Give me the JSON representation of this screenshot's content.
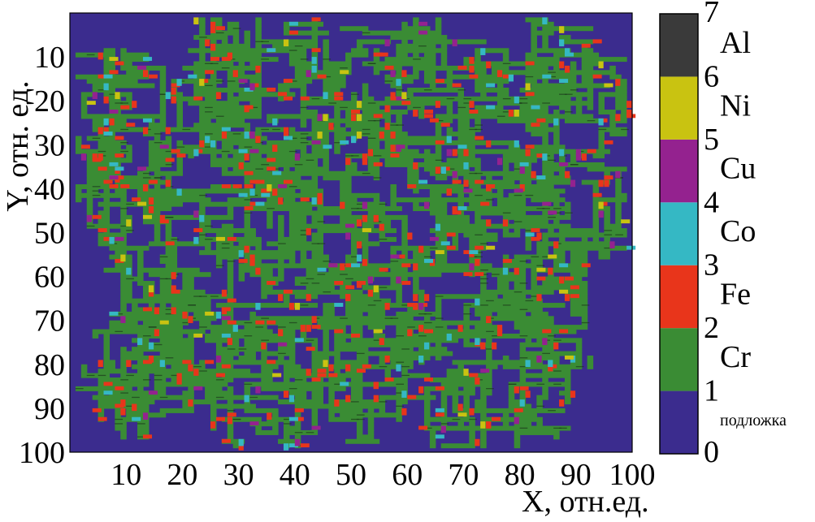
{
  "chart_data": {
    "type": "heatmap",
    "xlabel": "X, отн.ед.",
    "ylabel": "Y, отн. ед.",
    "xlim": [
      0,
      100
    ],
    "ylim": [
      0,
      100
    ],
    "y_inverted": true,
    "x_ticks": [
      10,
      20,
      30,
      40,
      50,
      60,
      70,
      80,
      90,
      100
    ],
    "y_ticks": [
      10,
      20,
      30,
      40,
      50,
      60,
      70,
      80,
      90,
      100
    ],
    "grid": false,
    "legend_position": "right",
    "colorbar": {
      "ticks": [
        0,
        1,
        2,
        3,
        4,
        5,
        6,
        7
      ],
      "segments": [
        {
          "from": 0,
          "to": 1,
          "label": "подложка",
          "color": "#3b2c8e"
        },
        {
          "from": 1,
          "to": 2,
          "label": "Cr",
          "color": "#3a8c34"
        },
        {
          "from": 2,
          "to": 3,
          "label": "Fe",
          "color": "#e8351b"
        },
        {
          "from": 3,
          "to": 4,
          "label": "Co",
          "color": "#35b8c4"
        },
        {
          "from": 4,
          "to": 5,
          "label": "Cu",
          "color": "#94228f"
        },
        {
          "from": 5,
          "to": 6,
          "label": "Ni",
          "color": "#c9c311"
        },
        {
          "from": 6,
          "to": 7,
          "label": "Al",
          "color": "#3a3a3a"
        }
      ]
    },
    "structure": "dendritic clusters of Cr (majority) with scattered Fe, Co, Cu, Ni atoms on substrate"
  }
}
